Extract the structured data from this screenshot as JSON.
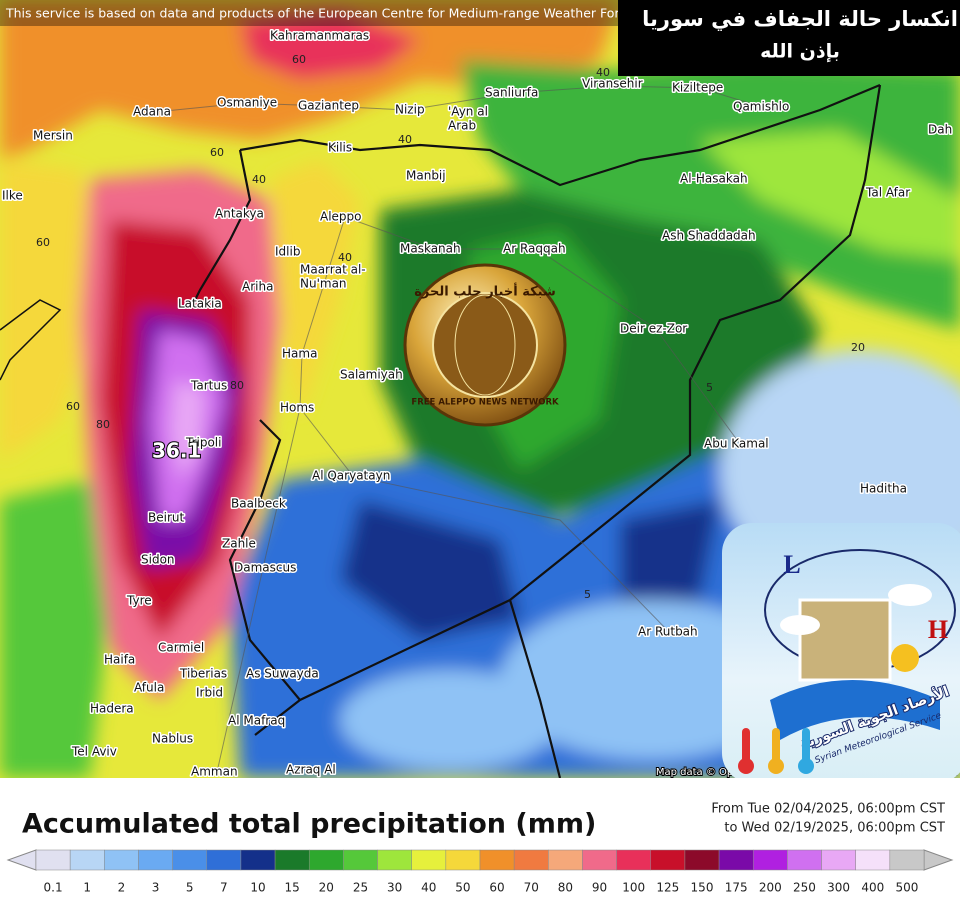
{
  "header": {
    "notice": "This service is based on data and products of the European Centre for Medium-range Weather For",
    "overlay_title": [
      "انكسار حالة الجفاف في سوريا",
      "بإذن الله"
    ]
  },
  "map": {
    "cities": [
      "Kahramanmaras",
      "Osmaniye",
      "Gaziantep",
      "Nizip",
      [
        "'Ayn al",
        "Arab"
      ],
      "Sanliurfa",
      "Viransehir",
      "Kiziltepe",
      "Qamishlo",
      "Dah",
      "Adana",
      "Mersin",
      "Kilis",
      "Manbij",
      "Al-Hasakah",
      "Tal Afar",
      "Antakya",
      "Aleppo",
      "Idlib",
      "Maskanah",
      "Ar Raqqah",
      "Ash Shaddadah",
      [
        "Maarrat al-",
        "Nu'man"
      ],
      "Ariha",
      "Latakia",
      "Deir ez-Zor",
      "Hama",
      "Salamiyah",
      "Tartus",
      "Homs",
      "Abu Kamal",
      "Tripoli",
      "Al Qaryatayn",
      "Haditha",
      "Baalbeck",
      "Beirut",
      "Zahle",
      "Damascus",
      "Sidon",
      "Tyre",
      "Ar Rutbah",
      "Carmiel",
      "Haifa",
      "Tiberias",
      "As Suwayda",
      "Afula",
      "Irbid",
      "Hadera",
      "Al Mafraq",
      "Nablus",
      "Tel Aviv",
      "Amman",
      "Azraq Al",
      "Ilke"
    ],
    "contour_labels": [
      60,
      40,
      40,
      60,
      40,
      60,
      60,
      80,
      40,
      20,
      5,
      5,
      80
    ],
    "max_label": "36.1",
    "attribution": "Map data © OpenStreetMap contributors, rendering GIScien"
  },
  "logos": {
    "network": {
      "arabic": "شبكة أخبار حلب الحرة",
      "english": "FREE ALEPPO NEWS NETWORK"
    },
    "met": {
      "low": "L",
      "high": "H",
      "arabic": "الأرصاد الجوية السورية",
      "english": "Syrian Meteorological Service"
    }
  },
  "legend": {
    "title": "Accumulated total precipitation (mm)",
    "period": [
      "From Tue 02/04/2025, 06:00pm CST",
      "to Wed 02/19/2025, 06:00pm CST"
    ],
    "levels": [
      {
        "value": 0.1,
        "color": "#e0e0f0"
      },
      {
        "value": 1,
        "color": "#b8d6f5"
      },
      {
        "value": 2,
        "color": "#8fc2f5"
      },
      {
        "value": 3,
        "color": "#6aaaf2"
      },
      {
        "value": 5,
        "color": "#4a8fe8"
      },
      {
        "value": 7,
        "color": "#2f6fd8"
      },
      {
        "value": 10,
        "color": "#14308a"
      },
      {
        "value": 15,
        "color": "#1a7a2a"
      },
      {
        "value": 20,
        "color": "#2ea82e"
      },
      {
        "value": 25,
        "color": "#55c83a"
      },
      {
        "value": 30,
        "color": "#9ee63c"
      },
      {
        "value": 40,
        "color": "#e6f03c"
      },
      {
        "value": 50,
        "color": "#f5d83a"
      },
      {
        "value": 60,
        "color": "#f0902a"
      },
      {
        "value": 70,
        "color": "#f07a40"
      },
      {
        "value": 80,
        "color": "#f5a87a"
      },
      {
        "value": 90,
        "color": "#f06a8a"
      },
      {
        "value": 100,
        "color": "#e8305a"
      },
      {
        "value": 125,
        "color": "#c8102a"
      },
      {
        "value": 150,
        "color": "#8c0a2a"
      },
      {
        "value": 175,
        "color": "#7a0aa8"
      },
      {
        "value": 200,
        "color": "#b020e0"
      },
      {
        "value": 250,
        "color": "#d070f0"
      },
      {
        "value": 300,
        "color": "#e8a8f5"
      },
      {
        "value": 400,
        "color": "#f5e0fa"
      },
      {
        "value": 500,
        "color": "#c8c8c8"
      }
    ]
  }
}
